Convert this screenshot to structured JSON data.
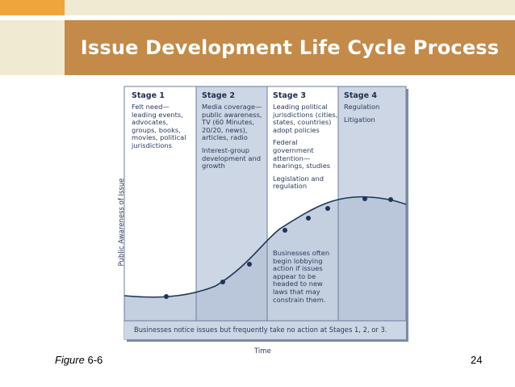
{
  "slide": {
    "title": "Issue Development Life Cycle Process",
    "caption_prefix": "Figure",
    "caption_number": "6-6",
    "page_number": "24",
    "colors": {
      "orange": "#f0a43c",
      "beige": "#f0ead2",
      "title_band": "#c48a4a"
    }
  },
  "figure": {
    "y_axis_label": "Public Awareness of Issue",
    "x_axis_label": "Time",
    "stages": [
      {
        "heading": "Stage 1",
        "text": [
          "Felt need—",
          "leading events,",
          "advocates,",
          "groups, books,",
          "movies, political",
          "jurisdictions"
        ]
      },
      {
        "heading": "Stage 2",
        "text": [
          "Media coverage—",
          "public awareness,",
          "TV (60 Minutes,",
          "20/20, news),",
          "articles, radio",
          "",
          "Interest-group",
          "development and",
          "growth"
        ]
      },
      {
        "heading": "Stage 3",
        "text": [
          "Leading political",
          "jurisdictions (cities,",
          "states, countries)",
          "adopt policies",
          "",
          "Federal",
          "government",
          "attention—",
          "hearings, studies",
          "",
          "Legislation and",
          "regulation"
        ]
      },
      {
        "heading": "Stage 4",
        "text": [
          "Regulation",
          "",
          "Litigation"
        ]
      }
    ],
    "lobbying_note": [
      "Businesses often",
      "begin lobbying",
      "action if issues",
      "appear to be",
      "headed to new",
      "laws that may",
      "constrain them."
    ],
    "bottom_note": "Businesses notice issues but frequently take no action at Stages 1, 2, or 3."
  }
}
